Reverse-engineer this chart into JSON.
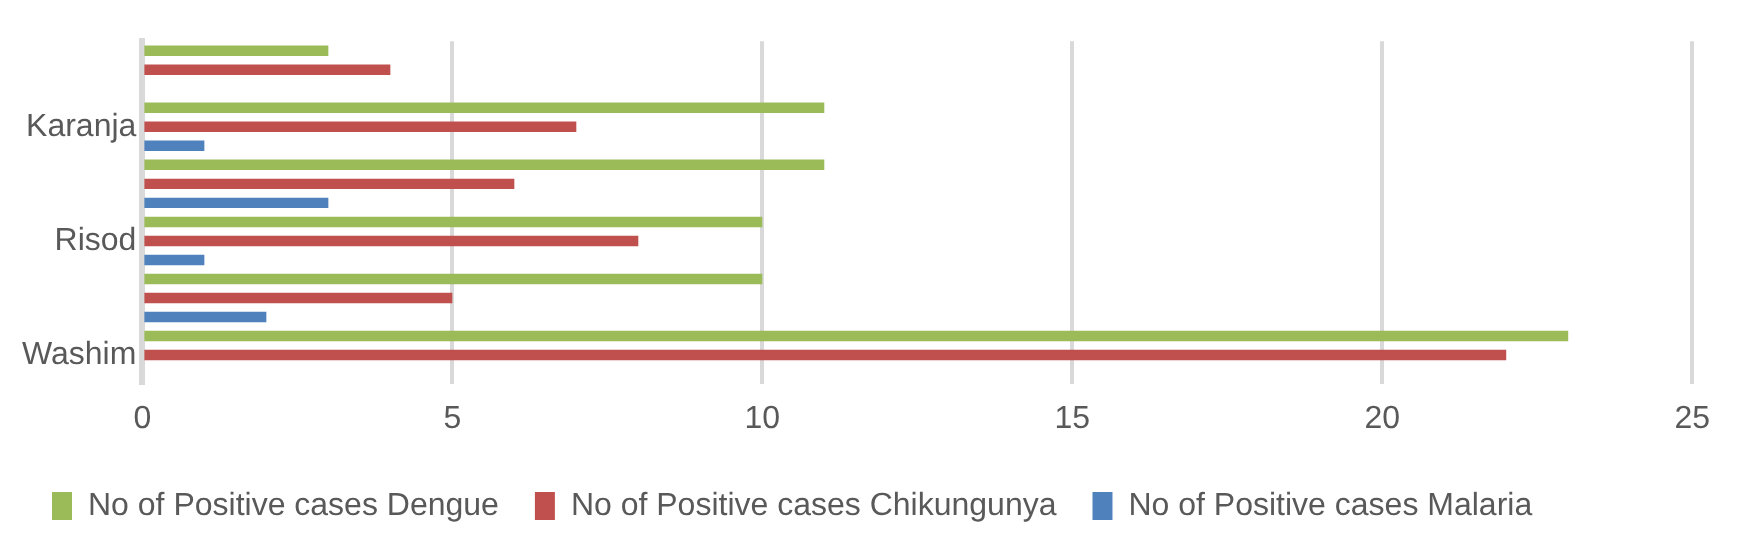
{
  "chart_data": {
    "type": "bar",
    "orientation": "horizontal",
    "categories": [
      null,
      "Karanja",
      null,
      "Risod",
      null,
      "Washim"
    ],
    "series": [
      {
        "name": "No of Positive cases Dengue",
        "color": "#9bbb59",
        "values": [
          3,
          11,
          11,
          10,
          10,
          23
        ]
      },
      {
        "name": "No of Positive cases Chikungunya",
        "color": "#c0504d",
        "values": [
          4,
          7,
          6,
          8,
          5,
          22
        ]
      },
      {
        "name": "No of Positive cases Malaria",
        "color": "#4f81bd",
        "values": [
          0,
          1,
          3,
          1,
          2,
          0
        ]
      }
    ],
    "xlim": [
      0,
      25
    ],
    "xticks": [
      0,
      5,
      10,
      15,
      20,
      25
    ],
    "grid": "x",
    "legend": "bottom"
  }
}
